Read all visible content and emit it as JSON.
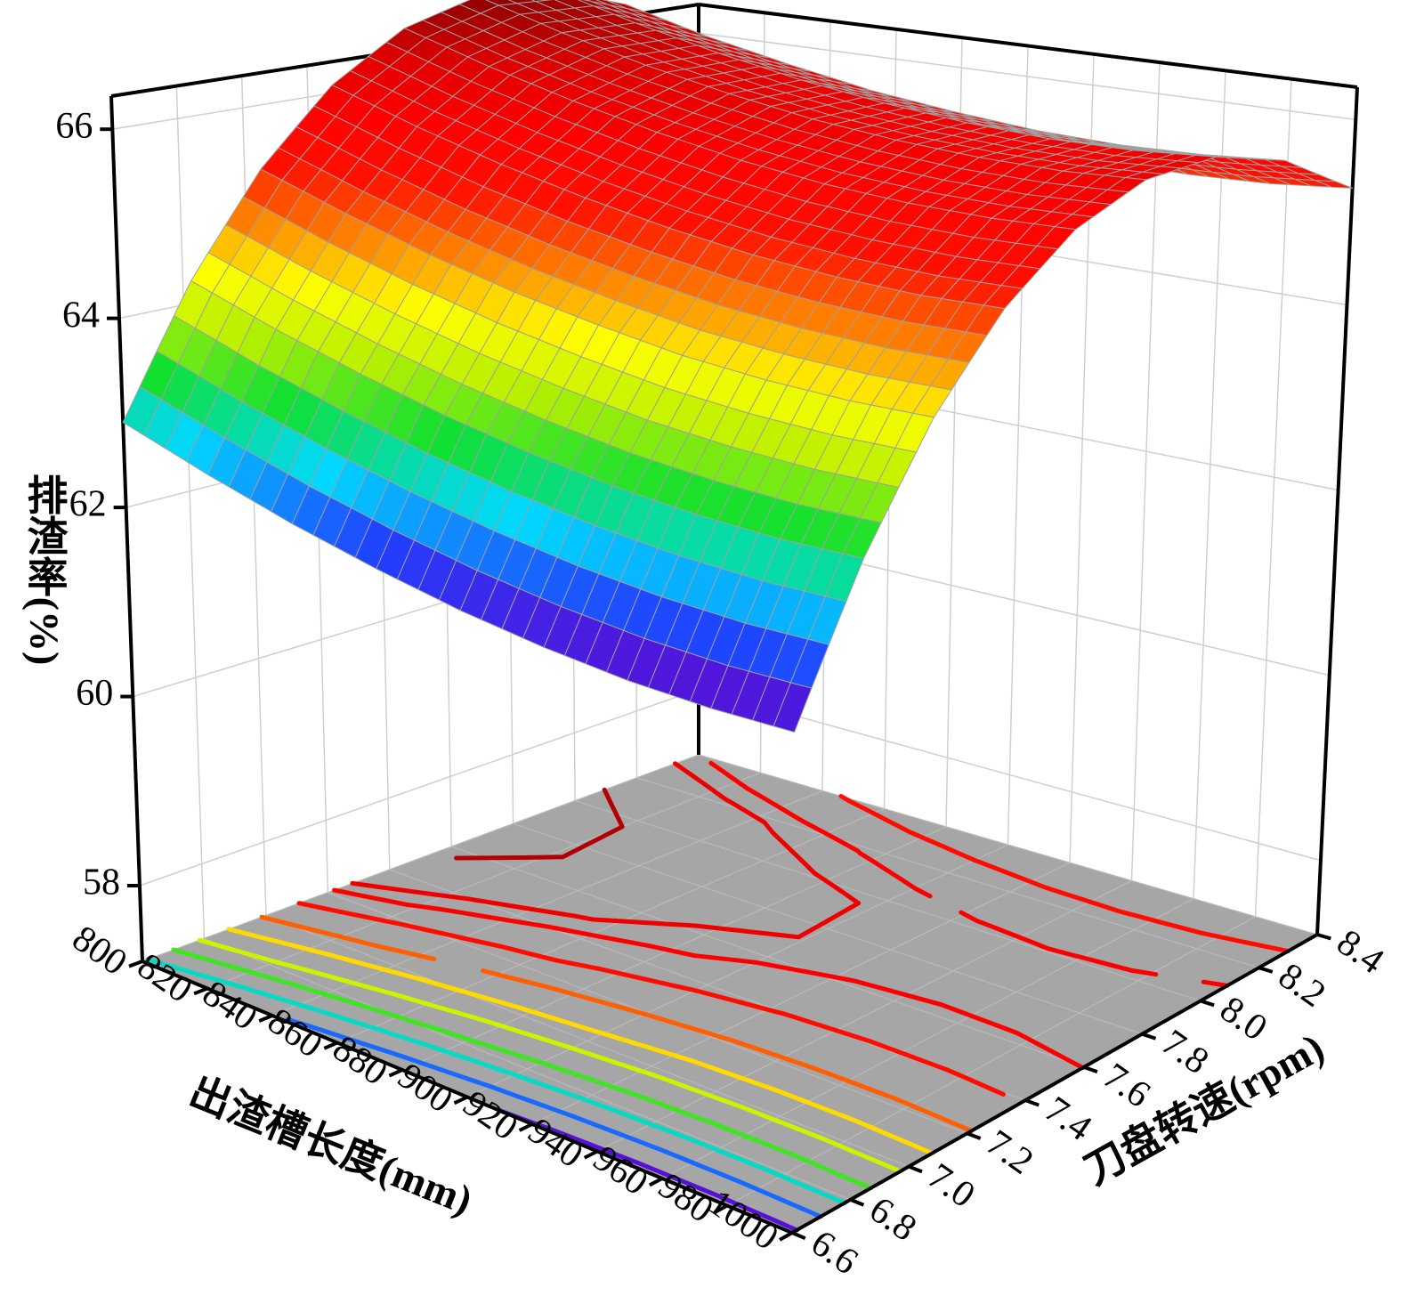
{
  "chart_data": {
    "type": "surface",
    "x_label": "出渣槽长度(mm)",
    "y_label": "刀盘转速(rpm)",
    "z_label": "排渣率(%)",
    "xlim": [
      800,
      1000
    ],
    "ylim": [
      6.6,
      8.4
    ],
    "zlim": [
      57.2,
      66.35
    ],
    "xticks": [
      800,
      820,
      840,
      860,
      880,
      900,
      920,
      940,
      960,
      980,
      1000
    ],
    "yticks": [
      6.6,
      6.8,
      {
        "value": 7,
        "label": "7.0"
      },
      7.2,
      7.4,
      7.6,
      7.8,
      {
        "value": 8,
        "label": "8.0"
      },
      8.2,
      8.4
    ],
    "zticks": [
      58,
      60,
      62,
      64,
      66
    ],
    "x": [
      800,
      825,
      850,
      875,
      900,
      925,
      950,
      975,
      1000
    ],
    "y": [
      6.6,
      6.825,
      7.05,
      7.275,
      7.5,
      7.725,
      7.95,
      8.175,
      8.4
    ],
    "z": [
      [
        62.9,
        62.62,
        62.38,
        62.19,
        62.04,
        61.94,
        61.88,
        61.87,
        61.9
      ],
      [
        64.24,
        63.96,
        63.73,
        63.54,
        63.4,
        63.3,
        63.25,
        63.24,
        63.28
      ],
      [
        65.3,
        65.03,
        64.8,
        64.62,
        64.49,
        64.39,
        64.35,
        64.35,
        64.39
      ],
      [
        66.09,
        65.82,
        65.6,
        65.43,
        65.3,
        65.21,
        65.17,
        65.17,
        65.22
      ],
      [
        66.6,
        66.34,
        66.13,
        65.96,
        65.83,
        65.75,
        65.72,
        65.73,
        65.78
      ],
      [
        66.84,
        66.58,
        66.37,
        66.21,
        66.09,
        66.02,
        65.99,
        66.0,
        66.06
      ],
      [
        66.8,
        66.55,
        66.35,
        66.19,
        66.08,
        66.01,
        65.98,
        66.0,
        66.07
      ],
      [
        66.49,
        66.24,
        66.05,
        65.89,
        65.79,
        65.72,
        65.7,
        65.73,
        65.8
      ],
      [
        65.9,
        65.66,
        65.47,
        65.32,
        65.22,
        65.16,
        65.15,
        65.18,
        65.26
      ]
    ],
    "colormap": [
      "#6a00c8",
      "#2040ff",
      "#00d8ff",
      "#10e030",
      "#b8f000",
      "#ffff00",
      "#ff8000",
      "#ff1000",
      "#ff0000",
      "#e00000",
      "#8b0000"
    ],
    "contour_levels": [
      62,
      62.5,
      63,
      63.5,
      64,
      64.5,
      65,
      65.5,
      65.9,
      66.1,
      66.6
    ],
    "floor_color": "#a6a6a6",
    "grid": true
  }
}
